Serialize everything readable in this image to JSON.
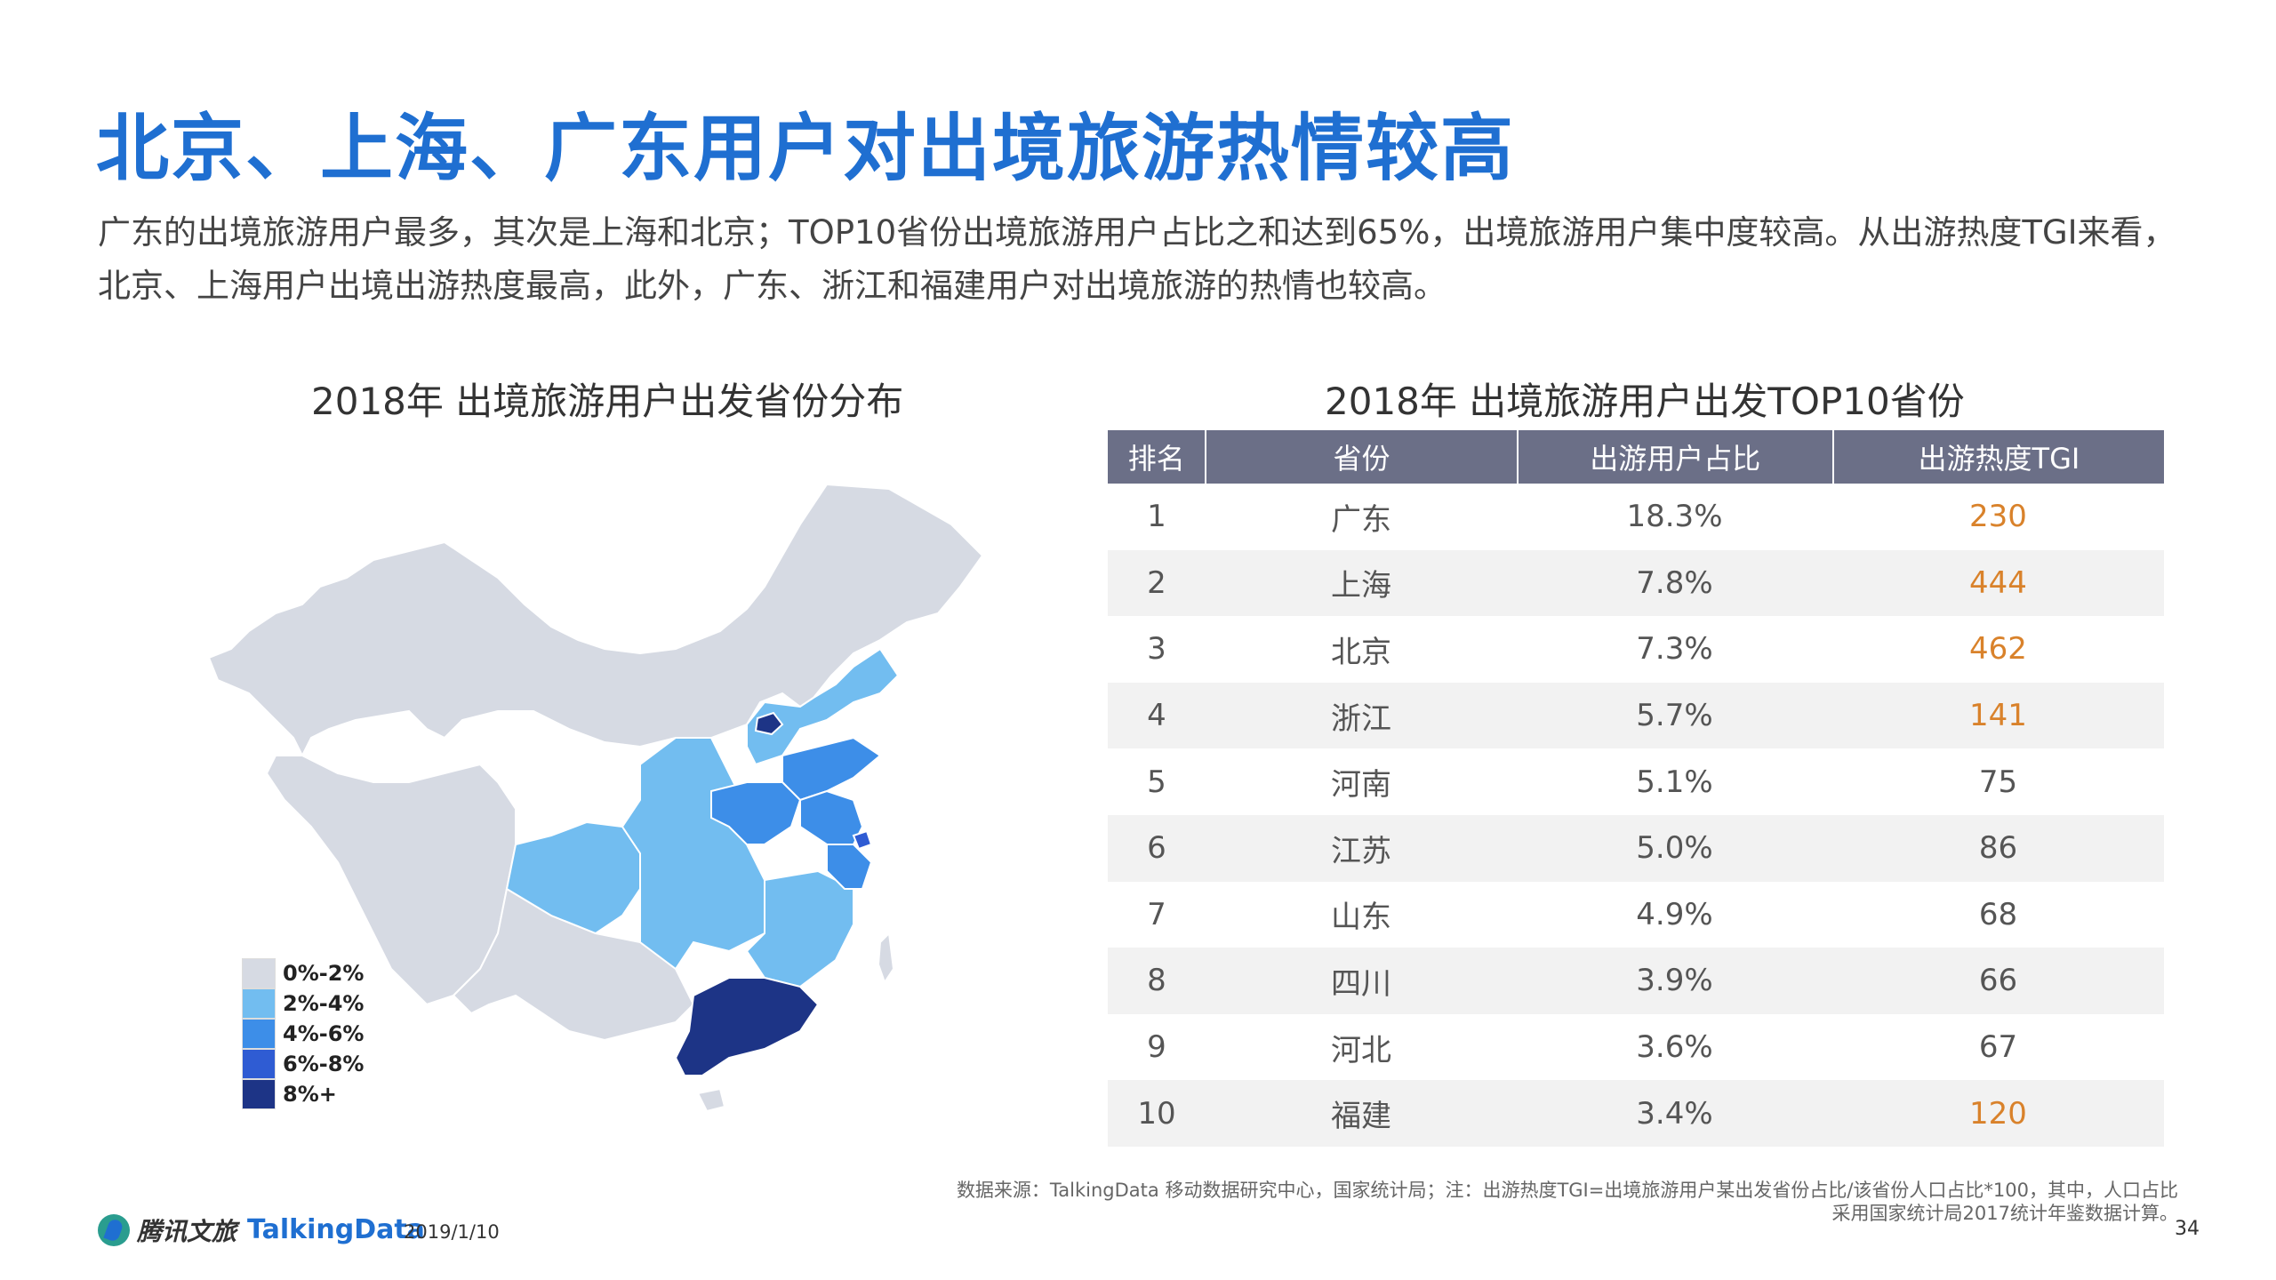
{
  "title": "北京、上海、广东用户对出境旅游热情较高",
  "intro": "广东的出境旅游用户最多，其次是上海和北京；TOP10省份出境旅游用户占比之和达到65%，出境旅游用户集中度较高。从出游热度TGI来看，北京、上海用户出境出游热度最高，此外，广东、浙江和福建用户对出境旅游的热情也较高。",
  "map": {
    "title": "2018年 出境旅游用户出发省份分布",
    "legend": [
      {
        "label": "0%-2%",
        "color": "#d6dae3"
      },
      {
        "label": "2%-4%",
        "color": "#72bdf0"
      },
      {
        "label": "4%-6%",
        "color": "#3d8ee8"
      },
      {
        "label": "6%-8%",
        "color": "#2f5cd3"
      },
      {
        "label": "8%+",
        "color": "#1d3486"
      }
    ]
  },
  "table": {
    "title": "2018年 出境旅游用户出发TOP10省份",
    "headers": [
      "排名",
      "省份",
      "出游用户占比",
      "出游热度TGI"
    ],
    "highlight_color": "#d9822b",
    "rows": [
      {
        "rank": "1",
        "province": "广东",
        "share": "18.3%",
        "tgi": "230",
        "hi": true
      },
      {
        "rank": "2",
        "province": "上海",
        "share": "7.8%",
        "tgi": "444",
        "hi": true
      },
      {
        "rank": "3",
        "province": "北京",
        "share": "7.3%",
        "tgi": "462",
        "hi": true
      },
      {
        "rank": "4",
        "province": "浙江",
        "share": "5.7%",
        "tgi": "141",
        "hi": true
      },
      {
        "rank": "5",
        "province": "河南",
        "share": "5.1%",
        "tgi": "75",
        "hi": false
      },
      {
        "rank": "6",
        "province": "江苏",
        "share": "5.0%",
        "tgi": "86",
        "hi": false
      },
      {
        "rank": "7",
        "province": "山东",
        "share": "4.9%",
        "tgi": "68",
        "hi": false
      },
      {
        "rank": "8",
        "province": "四川",
        "share": "3.9%",
        "tgi": "66",
        "hi": false
      },
      {
        "rank": "9",
        "province": "河北",
        "share": "3.6%",
        "tgi": "67",
        "hi": false
      },
      {
        "rank": "10",
        "province": "福建",
        "share": "3.4%",
        "tgi": "120",
        "hi": true
      }
    ]
  },
  "chart_data": {
    "type": "table",
    "title": "2018年 出境旅游用户出发TOP10省份",
    "columns": [
      "排名",
      "省份",
      "出游用户占比",
      "出游热度TGI"
    ],
    "rows": [
      [
        1,
        "广东",
        18.3,
        230
      ],
      [
        2,
        "上海",
        7.8,
        444
      ],
      [
        3,
        "北京",
        7.3,
        462
      ],
      [
        4,
        "浙江",
        5.7,
        141
      ],
      [
        5,
        "河南",
        5.1,
        75
      ],
      [
        6,
        "江苏",
        5.0,
        86
      ],
      [
        7,
        "山东",
        4.9,
        68
      ],
      [
        8,
        "四川",
        3.9,
        66
      ],
      [
        9,
        "河北",
        3.6,
        67
      ],
      [
        10,
        "福建",
        3.4,
        120
      ]
    ]
  },
  "footer": {
    "source_line1": "数据来源：TalkingData 移动数据研究中心，国家统计局；注：出游热度TGI=出境旅游用户某出发省份占比/该省份人口占比*100，其中，人口占比",
    "source_line2": "采用国家统计局2017统计年鉴数据计算。",
    "page": "34",
    "logo1": "腾讯文旅",
    "logo2": "TalkingData",
    "date": "2019/1/10"
  }
}
